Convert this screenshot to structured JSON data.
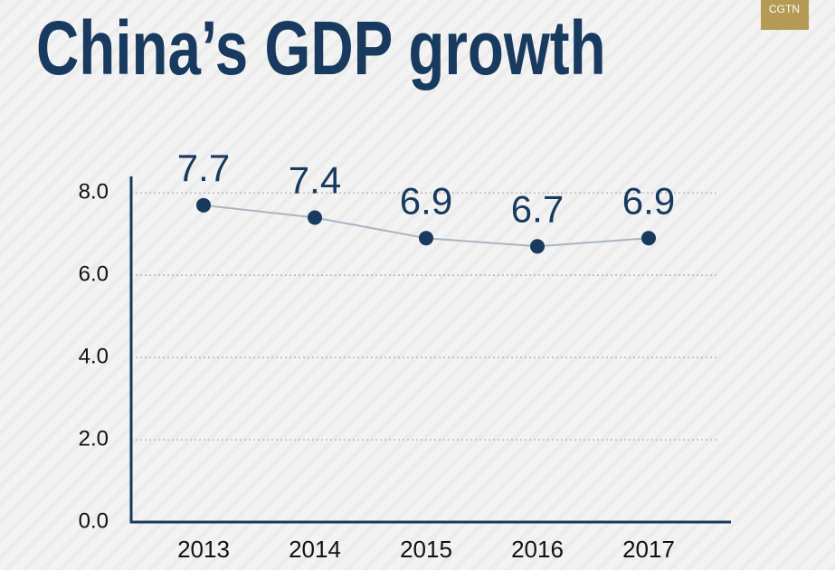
{
  "logo": "CGTN",
  "chart_data": {
    "type": "line",
    "title": "China’s GDP growth",
    "categories": [
      "2013",
      "2014",
      "2015",
      "2016",
      "2017"
    ],
    "values": [
      7.7,
      7.4,
      6.9,
      6.7,
      6.9
    ],
    "color": "#a9b5c2",
    "marker_color": "#173a5e",
    "ylim": [
      0,
      8.4
    ],
    "yticks": [
      {
        "value": 0,
        "label": "0.0"
      },
      {
        "value": 2,
        "label": "2.0"
      },
      {
        "value": 4,
        "label": "4.0"
      },
      {
        "value": 6,
        "label": "6.0"
      },
      {
        "value": 8,
        "label": "8.0"
      }
    ],
    "grid": true
  }
}
